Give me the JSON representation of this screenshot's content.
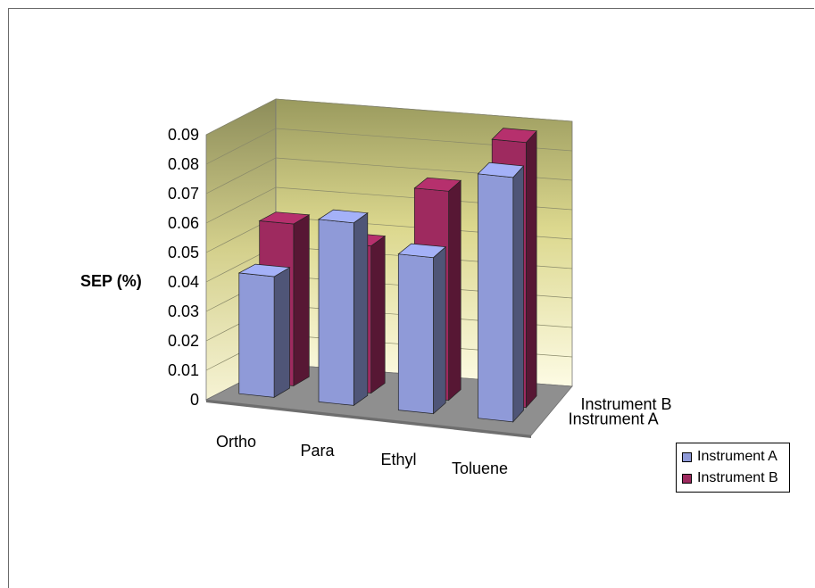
{
  "chart_data": {
    "type": "bar",
    "subtype": "3d-clustered-column",
    "title": "",
    "ylabel": "SEP (%)",
    "xlabel": "",
    "categories": [
      "Ortho",
      "Para",
      "Ethyl",
      "Toluene"
    ],
    "depth_labels": [
      "Instrument B",
      "Instrument A"
    ],
    "y_ticks": [
      "0",
      "0.01",
      "0.02",
      "0.03",
      "0.04",
      "0.05",
      "0.06",
      "0.07",
      "0.08",
      "0.09"
    ],
    "ylim": [
      0,
      0.09
    ],
    "grid": true,
    "legend_position": "right",
    "series": [
      {
        "name": "Instrument A",
        "color": "#8f9ad8",
        "values": [
          0.041,
          0.062,
          0.053,
          0.083
        ]
      },
      {
        "name": "Instrument B",
        "color": "#9e2a5f",
        "values": [
          0.055,
          0.05,
          0.071,
          0.09
        ]
      }
    ]
  },
  "legend": {
    "items": [
      {
        "label": "Instrument A",
        "color": "#8f9ad8"
      },
      {
        "label": "Instrument B",
        "color": "#9e2a5f"
      }
    ]
  }
}
